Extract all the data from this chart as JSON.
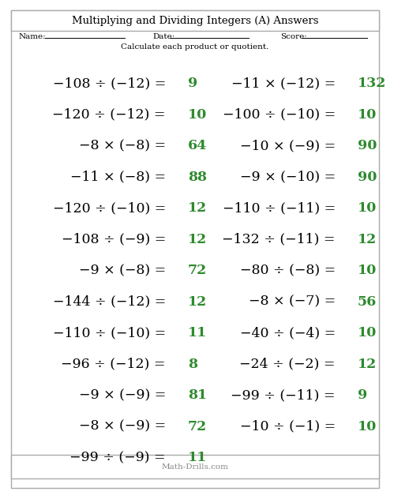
{
  "title": "Multiplying and Dividing Integers (A) Answers",
  "subtitle": "Calculate each product or quotient.",
  "name_label": "Name:",
  "date_label": "Date:",
  "score_label": "Score:",
  "footer": "Math-Drills.com",
  "bg_color": "#ffffff",
  "border_color": "#aaaaaa",
  "text_color": "#000000",
  "answer_color": "#2d8a2d",
  "footer_color": "#888888",
  "left_problems": [
    [
      "−108 ÷ (−12) =",
      "9"
    ],
    [
      "−120 ÷ (−12) =",
      "10"
    ],
    [
      "−8 × (−8) =",
      "64"
    ],
    [
      "−11 × (−8) =",
      "88"
    ],
    [
      "−120 ÷ (−10) =",
      "12"
    ],
    [
      "−108 ÷ (−9) =",
      "12"
    ],
    [
      "−9 × (−8) =",
      "72"
    ],
    [
      "−144 ÷ (−12) =",
      "12"
    ],
    [
      "−110 ÷ (−10) =",
      "11"
    ],
    [
      "−96 ÷ (−12) =",
      "8"
    ],
    [
      "−9 × (−9) =",
      "81"
    ],
    [
      "−8 × (−9) =",
      "72"
    ],
    [
      "−99 ÷ (−9) =",
      "11"
    ]
  ],
  "right_problems": [
    [
      "−11 × (−12) =",
      "132"
    ],
    [
      "−100 ÷ (−10) =",
      "10"
    ],
    [
      "−10 × (−9) =",
      "90"
    ],
    [
      "−9 × (−10) =",
      "90"
    ],
    [
      "−110 ÷ (−11) =",
      "10"
    ],
    [
      "−132 ÷ (−11) =",
      "12"
    ],
    [
      "−80 ÷ (−8) =",
      "10"
    ],
    [
      "−8 × (−7) =",
      "56"
    ],
    [
      "−40 ÷ (−4) =",
      "10"
    ],
    [
      "−24 ÷ (−2) =",
      "12"
    ],
    [
      "−99 ÷ (−11) =",
      "9"
    ],
    [
      "−10 ÷ (−1) =",
      "10"
    ],
    [
      "",
      ""
    ]
  ]
}
